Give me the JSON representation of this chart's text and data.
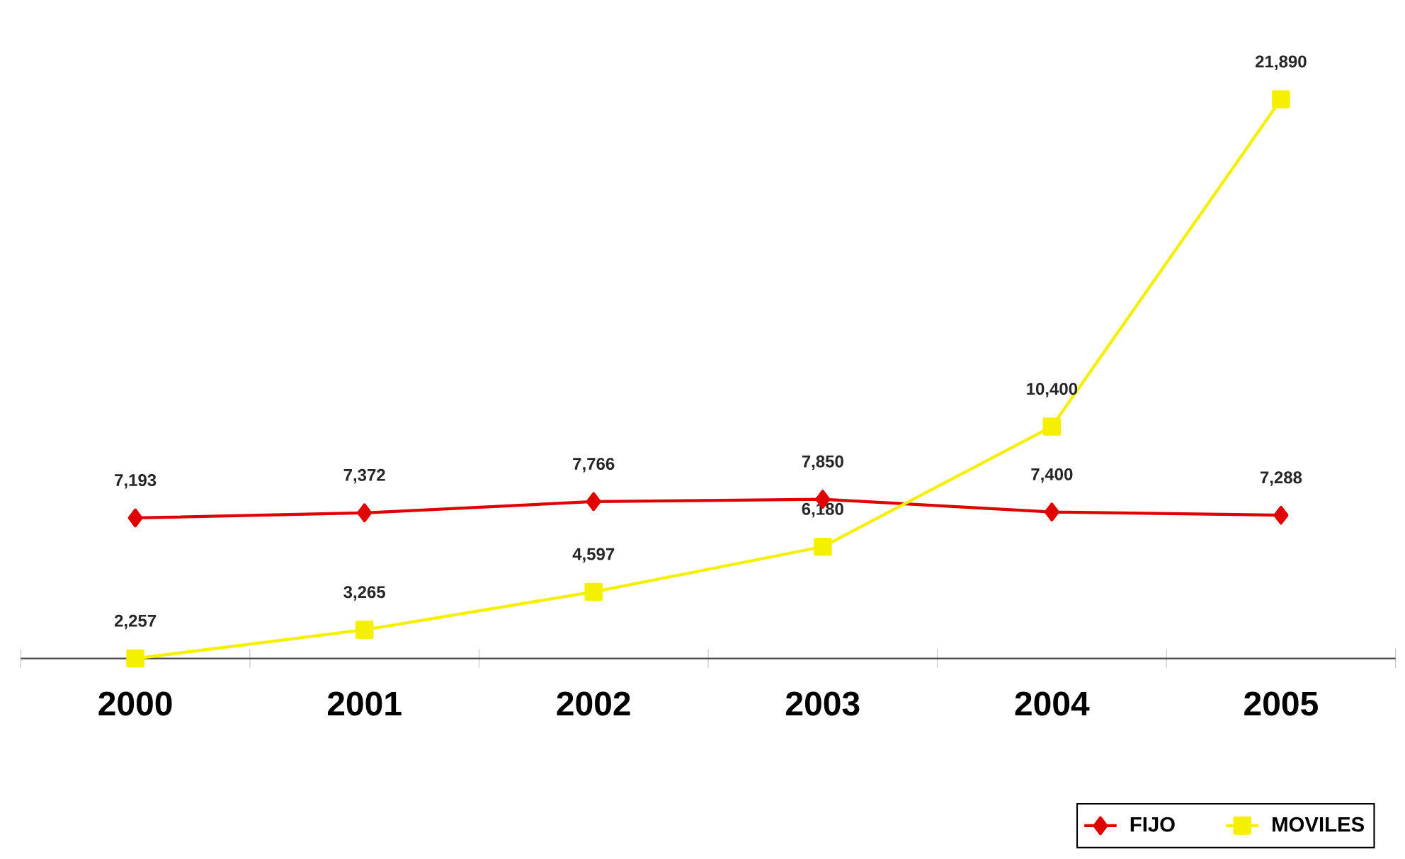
{
  "chart_data": {
    "type": "line",
    "categories": [
      "2000",
      "2001",
      "2002",
      "2003",
      "2004",
      "2005"
    ],
    "series": [
      {
        "name": "FIJO",
        "color": "#e00000",
        "marker": "diamond",
        "values": [
          7193,
          7372,
          7766,
          7850,
          7400,
          7288
        ],
        "value_labels": [
          "7,193",
          "7,372",
          "7,766",
          "7,850",
          "7,400",
          "7,288"
        ]
      },
      {
        "name": "MOVILES",
        "color": "#f5f000",
        "marker": "square",
        "values": [
          2257,
          3265,
          4597,
          6180,
          10400,
          21890
        ],
        "value_labels": [
          "2,257",
          "3,265",
          "4,597",
          "6,180",
          "10,400",
          "21,890"
        ]
      }
    ],
    "legend": "bottom right"
  }
}
